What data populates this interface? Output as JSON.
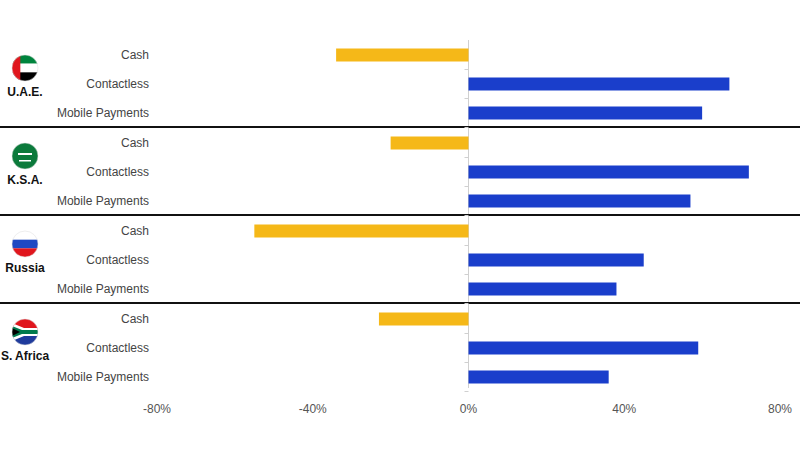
{
  "chart_data": {
    "type": "bar",
    "orientation": "horizontal",
    "grid": false,
    "categories": [
      "Cash",
      "Contactless",
      "Mobile Payments"
    ],
    "colors": [
      "#f5b818",
      "#1a3ecb",
      "#1a3ecb"
    ],
    "groups": [
      {
        "name": "U.A.E.",
        "values": [
          -34,
          67,
          60
        ]
      },
      {
        "name": "K.S.A.",
        "values": [
          -20,
          72,
          57
        ]
      },
      {
        "name": "Russia",
        "values": [
          -55,
          45,
          38
        ]
      },
      {
        "name": "S. Africa",
        "values": [
          -23,
          59,
          36
        ]
      }
    ],
    "xlim": [
      -80,
      80
    ],
    "xticks": [
      {
        "value": -80,
        "label": "-80%"
      },
      {
        "value": -40,
        "label": "-40%"
      },
      {
        "value": 0,
        "label": "0%"
      },
      {
        "value": 40,
        "label": "40%"
      },
      {
        "value": 80,
        "label": "80%"
      }
    ]
  }
}
